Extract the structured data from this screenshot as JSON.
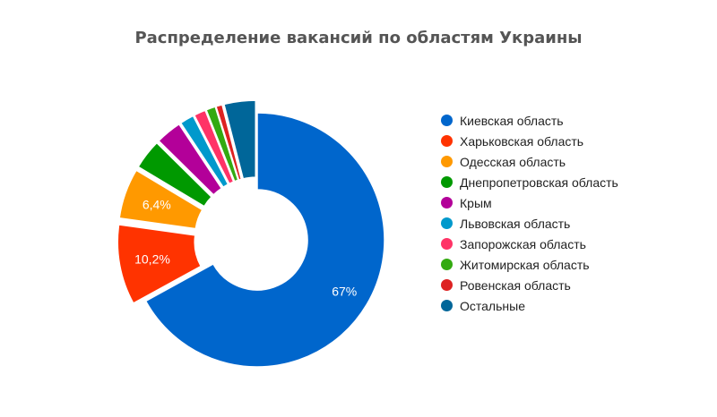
{
  "chart_data": {
    "type": "pie",
    "title": "Распределение вакансий по областям Украины",
    "legend_position": "right",
    "series": [
      {
        "name": "Киевская область",
        "value": 67,
        "data_label": "67%",
        "color": "#0066cc",
        "exploded": false
      },
      {
        "name": "Харьковская область",
        "value": 10.2,
        "data_label": "10,2%",
        "color": "#ff3300",
        "exploded": true
      },
      {
        "name": "Одесская область",
        "value": 6.4,
        "data_label": "6,4%",
        "color": "#ff9900",
        "exploded": true
      },
      {
        "name": "Днепропетровская область",
        "value": 3.8,
        "data_label": "",
        "color": "#009900",
        "exploded": true
      },
      {
        "name": "Крым",
        "value": 3.3,
        "data_label": "",
        "color": "#b30099",
        "exploded": true
      },
      {
        "name": "Львовская область",
        "value": 1.8,
        "data_label": "",
        "color": "#0099cc",
        "exploded": true
      },
      {
        "name": "Запорожская область",
        "value": 1.5,
        "data_label": "",
        "color": "#ff3366",
        "exploded": true
      },
      {
        "name": "Житомирская область",
        "value": 1.2,
        "data_label": "",
        "color": "#33aa11",
        "exploded": true
      },
      {
        "name": "Ровенская область",
        "value": 0.8,
        "data_label": "",
        "color": "#dd2222",
        "exploded": true
      },
      {
        "name": "Остальные",
        "value": 4.0,
        "data_label": "",
        "color": "#006699",
        "exploded": true
      }
    ]
  }
}
